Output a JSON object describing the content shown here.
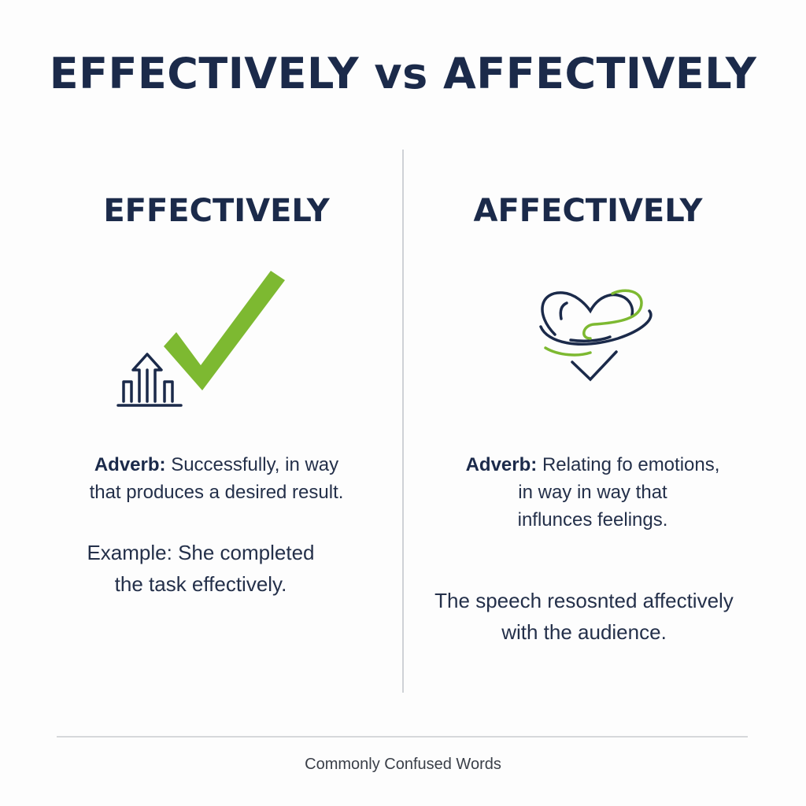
{
  "title": "EFFECTIVELY vs AFFECTIVELY",
  "colors": {
    "navy": "#1b2a4a",
    "green": "#7db931",
    "divider": "#cfd2d6"
  },
  "left": {
    "heading": "EFFECTIVELY",
    "icon": "checkmark-with-rising-arrow-chart",
    "definition_label": "Adverb:",
    "definition_line1": "Successfully, in way",
    "definition_line2": "that produces a desired result.",
    "example_line1": "Example: She completed",
    "example_line2": "the task effectively."
  },
  "right": {
    "heading": "AFFECTIVELY",
    "icon": "heart-with-swirl",
    "definition_label": "Adverb:",
    "definition_line1": "Relating fo emotions,",
    "definition_line2": "in way in way that",
    "definition_line3": "influnces feelings.",
    "example_line1": "The speech resosnted affectively",
    "example_line2": "with the audience."
  },
  "footer": "Commonly Confused Words"
}
